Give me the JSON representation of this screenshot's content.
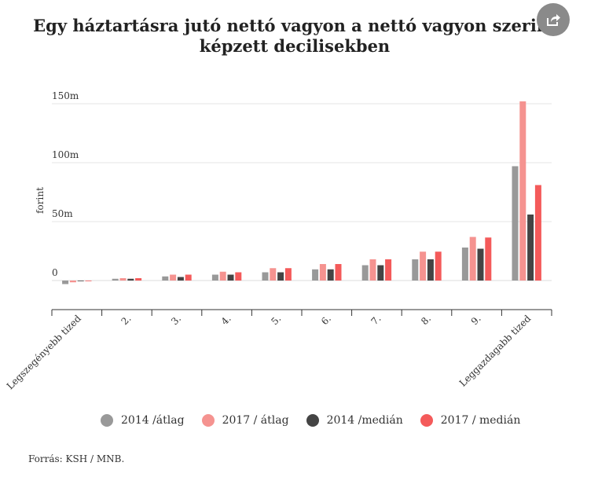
{
  "header": {
    "title_line1": "Egy háztartásra jutó nettó vagyon a nettó vagyon szerint",
    "title_line2": "képzett decilisekben",
    "share_icon": "share-icon"
  },
  "chart_data": {
    "type": "bar",
    "title": "Egy háztartásra jutó nettó vagyon a nettó vagyon szerint képzett decilisekben",
    "ylabel": "forint",
    "xlabel": "",
    "ylim": [
      -12,
      152
    ],
    "yticks": [
      {
        "value": 0,
        "label": "0"
      },
      {
        "value": 50,
        "label": "50m"
      },
      {
        "value": 100,
        "label": "100m"
      },
      {
        "value": 150,
        "label": "150m"
      }
    ],
    "grid": true,
    "legend_position": "bottom",
    "categories": [
      "Legszegényebb tized",
      "2.",
      "3.",
      "4.",
      "5.",
      "6.",
      "7.",
      "8.",
      "9.",
      "Leggazdagabb tized"
    ],
    "series": [
      {
        "name": "2014 /átlag",
        "color": "#999999",
        "values": [
          -3,
          1.5,
          3.5,
          5,
          7,
          9.5,
          13,
          18,
          28,
          97
        ]
      },
      {
        "name": "2017 / átlag",
        "color": "#f59390",
        "values": [
          -1.5,
          2,
          5,
          7.5,
          10.5,
          14,
          18,
          24.5,
          37,
          152
        ]
      },
      {
        "name": "2014 /medián",
        "color": "#444444",
        "values": [
          0,
          1.5,
          3,
          5,
          7,
          9.5,
          13,
          18,
          27,
          56
        ]
      },
      {
        "name": "2017 / medián",
        "color": "#f45a5a",
        "values": [
          -0.5,
          2,
          5,
          7,
          10.5,
          14,
          18,
          24.5,
          36.5,
          81
        ]
      }
    ]
  },
  "footer": {
    "source": "Forrás: KSH / MNB."
  }
}
